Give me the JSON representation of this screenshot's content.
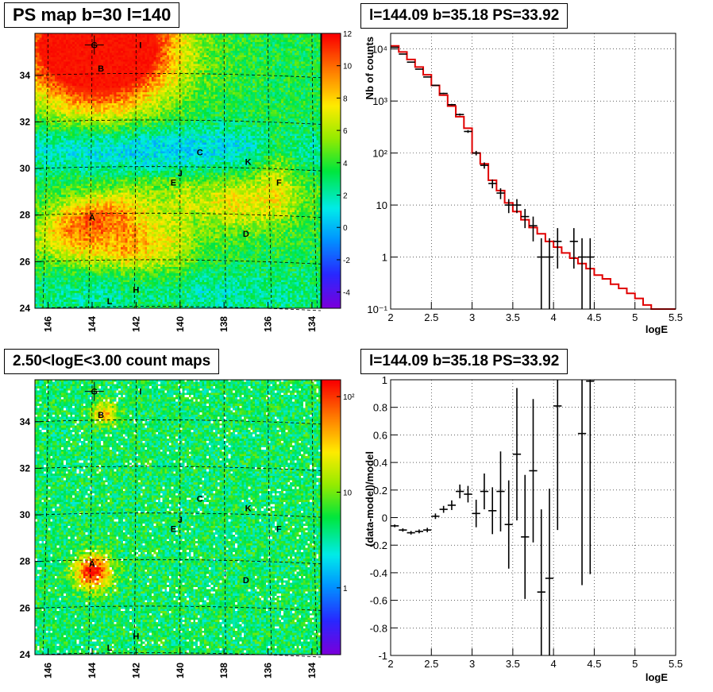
{
  "chart_data": [
    {
      "type": "heatmap",
      "title": "PS map b=30 l=140",
      "x_ticks": [
        "146",
        "144",
        "142",
        "140",
        "138",
        "136",
        "134"
      ],
      "y_ticks": [
        "24",
        "26",
        "28",
        "30",
        "32",
        "34"
      ],
      "xlim": [
        146.6,
        133.6
      ],
      "ylim": [
        24,
        35.8
      ],
      "colorbar": {
        "min": -5,
        "max": 12,
        "ticks": [
          "12",
          "10",
          "8",
          "6",
          "4",
          "2",
          "0",
          "-2",
          "-4"
        ]
      },
      "sources": [
        {
          "name": "G",
          "l": 143.9,
          "b": 35.3
        },
        {
          "name": "B",
          "l": 143.6,
          "b": 34.3
        },
        {
          "name": "I",
          "l": 141.8,
          "b": 35.3
        },
        {
          "name": "C",
          "l": 139.1,
          "b": 30.7
        },
        {
          "name": "K",
          "l": 136.9,
          "b": 30.3
        },
        {
          "name": "J",
          "l": 140.0,
          "b": 29.8
        },
        {
          "name": "E",
          "l": 140.3,
          "b": 29.4
        },
        {
          "name": "F",
          "l": 135.5,
          "b": 29.4
        },
        {
          "name": "A",
          "l": 144.0,
          "b": 27.9
        },
        {
          "name": "D",
          "l": 137.0,
          "b": 27.2
        },
        {
          "name": "H",
          "l": 142.0,
          "b": 24.8
        },
        {
          "name": "L",
          "l": 143.2,
          "b": 24.3
        }
      ]
    },
    {
      "type": "line",
      "title": "l=144.09 b=35.18 PS=33.92",
      "xlabel": "logE",
      "ylabel": "Nb of counts",
      "xlim": [
        2,
        5.5
      ],
      "ylim": [
        0.1,
        20000
      ],
      "yscale": "log",
      "x_ticks": [
        "2",
        "2.5",
        "3",
        "3.5",
        "4",
        "4.5",
        "5",
        "5.5"
      ],
      "y_ticks": [
        "10⁻¹",
        "1",
        "10",
        "10²",
        "10³",
        "10⁴"
      ],
      "grid": true,
      "bin_edges": [
        2.0,
        2.1,
        2.2,
        2.3,
        2.4,
        2.5,
        2.6,
        2.7,
        2.8,
        2.9,
        3.0,
        3.1,
        3.2,
        3.3,
        3.4,
        3.5,
        3.6,
        3.7,
        3.8,
        3.9,
        4.0,
        4.1,
        4.2,
        4.3,
        4.4,
        4.5,
        4.6,
        4.7,
        4.8,
        4.9,
        5.0,
        5.1,
        5.2,
        5.3,
        5.4,
        5.5
      ],
      "series": [
        {
          "kind": "model_histogram",
          "color": "#e00000",
          "values": [
            11500,
            8800,
            6300,
            4500,
            3200,
            2000,
            1300,
            800,
            500,
            300,
            100,
            62,
            30,
            19,
            11,
            7.5,
            5.2,
            3.7,
            2.8,
            2.0,
            1.55,
            1.2,
            0.95,
            0.75,
            0.6,
            0.45,
            0.38,
            0.3,
            0.25,
            0.2,
            0.16,
            0.12,
            0.1,
            0.1,
            0.1
          ]
        },
        {
          "kind": "data_points",
          "color": "#000000",
          "x": [
            2.05,
            2.15,
            2.25,
            2.35,
            2.45,
            2.55,
            2.65,
            2.75,
            2.85,
            2.95,
            3.05,
            3.15,
            3.25,
            3.35,
            3.45,
            3.55,
            3.65,
            3.75,
            3.85,
            3.95,
            4.05,
            4.25,
            4.35,
            4.45
          ],
          "y": [
            10800,
            8000,
            5600,
            4100,
            2900,
            2000,
            1400,
            850,
            550,
            260,
            100,
            58,
            26,
            17,
            10,
            10,
            6,
            4,
            1,
            1,
            2,
            2,
            1,
            1
          ],
          "err_low": [
            120,
            100,
            80,
            70,
            60,
            50,
            40,
            30,
            25,
            16,
            10,
            8,
            5,
            4,
            3,
            3,
            2.4,
            2,
            1,
            1,
            1.4,
            1.4,
            1,
            1
          ],
          "err_high": [
            120,
            100,
            80,
            70,
            60,
            50,
            40,
            30,
            25,
            16,
            10,
            8,
            5,
            4,
            3,
            3,
            2.4,
            2,
            1.3,
            1.3,
            1.6,
            1.6,
            1.3,
            1.3
          ]
        }
      ]
    },
    {
      "type": "heatmap",
      "title": "2.50<logE<3.00 count maps",
      "x_ticks": [
        "146",
        "144",
        "142",
        "140",
        "138",
        "136",
        "134"
      ],
      "y_ticks": [
        "24",
        "26",
        "28",
        "30",
        "32",
        "34"
      ],
      "xlim": [
        146.6,
        133.6
      ],
      "ylim": [
        24,
        35.8
      ],
      "colorbar": {
        "scale": "log",
        "min": 0.2,
        "max": 150,
        "ticks": [
          "10²",
          "10",
          "1"
        ]
      },
      "sources": [
        {
          "name": "G",
          "l": 143.9,
          "b": 35.3
        },
        {
          "name": "B",
          "l": 143.6,
          "b": 34.3
        },
        {
          "name": "I",
          "l": 141.8,
          "b": 35.3
        },
        {
          "name": "C",
          "l": 139.1,
          "b": 30.7
        },
        {
          "name": "K",
          "l": 136.9,
          "b": 30.3
        },
        {
          "name": "J",
          "l": 140.0,
          "b": 29.8
        },
        {
          "name": "E",
          "l": 140.3,
          "b": 29.4
        },
        {
          "name": "F",
          "l": 135.5,
          "b": 29.4
        },
        {
          "name": "A",
          "l": 144.0,
          "b": 27.9
        },
        {
          "name": "D",
          "l": 137.0,
          "b": 27.2
        },
        {
          "name": "H",
          "l": 142.0,
          "b": 24.8
        },
        {
          "name": "L",
          "l": 143.2,
          "b": 24.3
        }
      ]
    },
    {
      "type": "scatter",
      "title": "l=144.09 b=35.18 PS=33.92",
      "xlabel": "logE",
      "ylabel": "(data-model)/model",
      "xlim": [
        2,
        5.5
      ],
      "ylim": [
        -1,
        1
      ],
      "x_ticks": [
        "2",
        "2.5",
        "3",
        "3.5",
        "4",
        "4.5",
        "5",
        "5.5"
      ],
      "y_ticks": [
        "-1",
        "-0.8",
        "-0.6",
        "-0.4",
        "-0.2",
        "0",
        "0.2",
        "0.4",
        "0.6",
        "0.8",
        "1"
      ],
      "grid": true,
      "series": [
        {
          "kind": "residuals",
          "color": "#000000",
          "x": [
            2.05,
            2.15,
            2.25,
            2.35,
            2.45,
            2.55,
            2.65,
            2.75,
            2.85,
            2.95,
            3.05,
            3.15,
            3.25,
            3.35,
            3.45,
            3.55,
            3.65,
            3.75,
            3.85,
            3.95,
            4.05,
            4.35,
            4.45
          ],
          "y": [
            -0.06,
            -0.09,
            -0.11,
            -0.1,
            -0.09,
            0.01,
            0.06,
            0.09,
            0.19,
            0.17,
            0.03,
            0.19,
            0.05,
            0.19,
            -0.05,
            0.46,
            -0.14,
            0.34,
            -0.54,
            -0.44,
            0.81,
            0.61,
            0.99
          ],
          "err": [
            0.01,
            0.012,
            0.013,
            0.014,
            0.016,
            0.02,
            0.025,
            0.035,
            0.05,
            0.06,
            0.1,
            0.13,
            0.17,
            0.29,
            0.32,
            0.48,
            0.45,
            0.52,
            0.6,
            0.65,
            0.9,
            1.1,
            1.4
          ]
        }
      ]
    }
  ]
}
